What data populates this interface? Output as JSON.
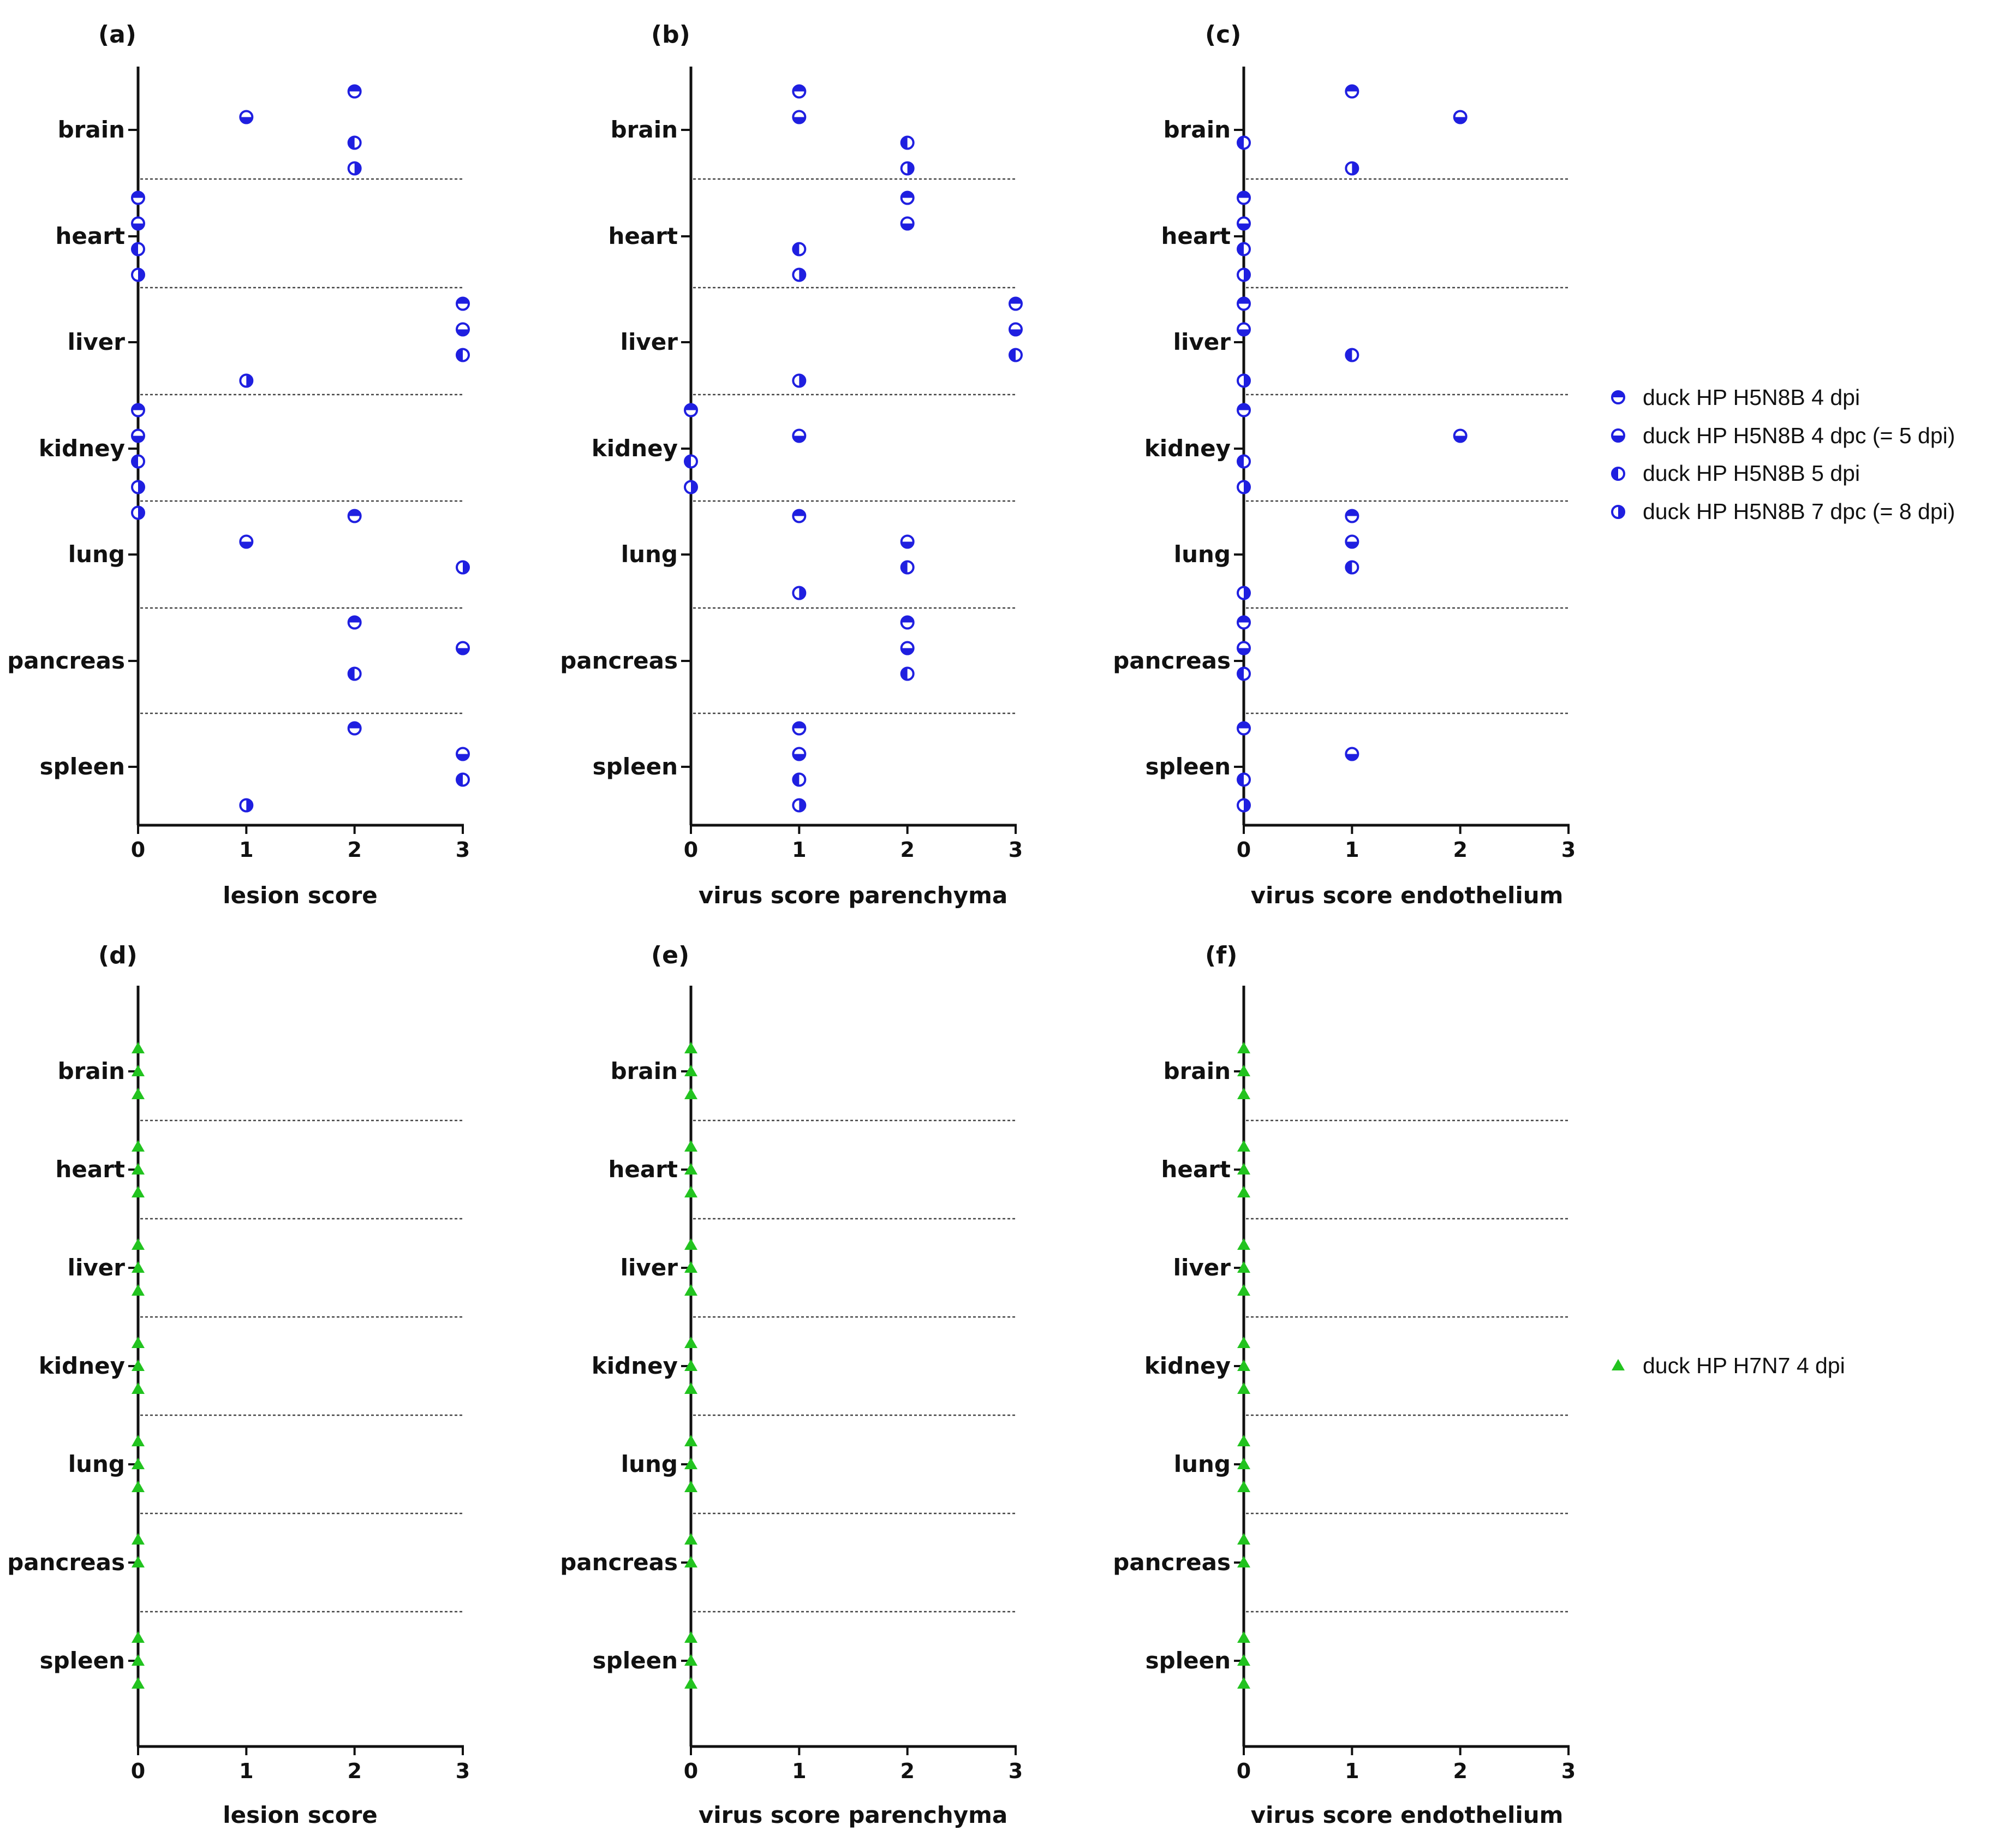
{
  "chart_data": [
    {
      "panel": "(a)",
      "type": "scatter",
      "xlabel": "lesion score",
      "xlim": [
        0,
        3
      ],
      "xticks": [
        "0",
        "1",
        "2",
        "3"
      ],
      "categories": [
        "brain",
        "heart",
        "liver",
        "kidney",
        "lung",
        "pancreas",
        "spleen"
      ],
      "points": [
        {
          "category": "brain",
          "marker": "circle-top",
          "x": 2
        },
        {
          "category": "brain",
          "marker": "circle-bottom",
          "x": 1
        },
        {
          "category": "brain",
          "marker": "circle-left",
          "x": 2
        },
        {
          "category": "brain",
          "marker": "circle-right",
          "x": 2
        },
        {
          "category": "heart",
          "marker": "circle-top",
          "x": 0
        },
        {
          "category": "heart",
          "marker": "circle-bottom",
          "x": 0
        },
        {
          "category": "heart",
          "marker": "circle-left",
          "x": 0
        },
        {
          "category": "heart",
          "marker": "circle-right",
          "x": 0
        },
        {
          "category": "liver",
          "marker": "circle-top",
          "x": 3
        },
        {
          "category": "liver",
          "marker": "circle-bottom",
          "x": 3
        },
        {
          "category": "liver",
          "marker": "circle-left",
          "x": 3
        },
        {
          "category": "liver",
          "marker": "circle-right",
          "x": 1
        },
        {
          "category": "kidney",
          "marker": "circle-top",
          "x": 0
        },
        {
          "category": "kidney",
          "marker": "circle-bottom",
          "x": 0
        },
        {
          "category": "kidney",
          "marker": "circle-left",
          "x": 0
        },
        {
          "category": "kidney",
          "marker": "circle-right",
          "x": 0
        },
        {
          "category": "kidney",
          "marker": "circle-right",
          "x": 0
        },
        {
          "category": "lung",
          "marker": "circle-top",
          "x": 2
        },
        {
          "category": "lung",
          "marker": "circle-bottom",
          "x": 1
        },
        {
          "category": "lung",
          "marker": "circle-right",
          "x": 3
        },
        {
          "category": "pancreas",
          "marker": "circle-top",
          "x": 2
        },
        {
          "category": "pancreas",
          "marker": "circle-bottom",
          "x": 3
        },
        {
          "category": "pancreas",
          "marker": "circle-left",
          "x": 2
        },
        {
          "category": "spleen",
          "marker": "circle-top",
          "x": 2
        },
        {
          "category": "spleen",
          "marker": "circle-bottom",
          "x": 3
        },
        {
          "category": "spleen",
          "marker": "circle-left",
          "x": 3
        },
        {
          "category": "spleen",
          "marker": "circle-right",
          "x": 1
        }
      ]
    },
    {
      "panel": "(b)",
      "type": "scatter",
      "xlabel": "virus score parenchyma",
      "xlim": [
        0,
        3
      ],
      "xticks": [
        "0",
        "1",
        "2",
        "3"
      ],
      "categories": [
        "brain",
        "heart",
        "liver",
        "kidney",
        "lung",
        "pancreas",
        "spleen"
      ],
      "points": [
        {
          "category": "brain",
          "marker": "circle-top",
          "x": 1
        },
        {
          "category": "brain",
          "marker": "circle-bottom",
          "x": 1
        },
        {
          "category": "brain",
          "marker": "circle-left",
          "x": 2
        },
        {
          "category": "brain",
          "marker": "circle-right",
          "x": 2
        },
        {
          "category": "heart",
          "marker": "circle-top",
          "x": 2
        },
        {
          "category": "heart",
          "marker": "circle-bottom",
          "x": 2
        },
        {
          "category": "heart",
          "marker": "circle-left",
          "x": 1
        },
        {
          "category": "heart",
          "marker": "circle-right",
          "x": 1
        },
        {
          "category": "liver",
          "marker": "circle-top",
          "x": 3
        },
        {
          "category": "liver",
          "marker": "circle-bottom",
          "x": 3
        },
        {
          "category": "liver",
          "marker": "circle-left",
          "x": 3
        },
        {
          "category": "liver",
          "marker": "circle-right",
          "x": 1
        },
        {
          "category": "kidney",
          "marker": "circle-top",
          "x": 0
        },
        {
          "category": "kidney",
          "marker": "circle-bottom",
          "x": 1
        },
        {
          "category": "kidney",
          "marker": "circle-left",
          "x": 0
        },
        {
          "category": "kidney",
          "marker": "circle-right",
          "x": 0
        },
        {
          "category": "lung",
          "marker": "circle-top",
          "x": 1
        },
        {
          "category": "lung",
          "marker": "circle-bottom",
          "x": 2
        },
        {
          "category": "lung",
          "marker": "circle-left",
          "x": 2
        },
        {
          "category": "lung",
          "marker": "circle-right",
          "x": 1
        },
        {
          "category": "pancreas",
          "marker": "circle-top",
          "x": 2
        },
        {
          "category": "pancreas",
          "marker": "circle-bottom",
          "x": 2
        },
        {
          "category": "pancreas",
          "marker": "circle-left",
          "x": 2
        },
        {
          "category": "spleen",
          "marker": "circle-top",
          "x": 1
        },
        {
          "category": "spleen",
          "marker": "circle-bottom",
          "x": 1
        },
        {
          "category": "spleen",
          "marker": "circle-left",
          "x": 1
        },
        {
          "category": "spleen",
          "marker": "circle-right",
          "x": 1
        }
      ]
    },
    {
      "panel": "(c)",
      "type": "scatter",
      "xlabel": "virus score endothelium",
      "xlim": [
        0,
        3
      ],
      "xticks": [
        "0",
        "1",
        "2",
        "3"
      ],
      "categories": [
        "brain",
        "heart",
        "liver",
        "kidney",
        "lung",
        "pancreas",
        "spleen"
      ],
      "points": [
        {
          "category": "brain",
          "marker": "circle-top",
          "x": 1
        },
        {
          "category": "brain",
          "marker": "circle-bottom",
          "x": 2
        },
        {
          "category": "brain",
          "marker": "circle-left",
          "x": 0
        },
        {
          "category": "brain",
          "marker": "circle-right",
          "x": 1
        },
        {
          "category": "heart",
          "marker": "circle-top",
          "x": 0
        },
        {
          "category": "heart",
          "marker": "circle-bottom",
          "x": 0
        },
        {
          "category": "heart",
          "marker": "circle-left",
          "x": 0
        },
        {
          "category": "heart",
          "marker": "circle-right",
          "x": 0
        },
        {
          "category": "liver",
          "marker": "circle-top",
          "x": 0
        },
        {
          "category": "liver",
          "marker": "circle-bottom",
          "x": 0
        },
        {
          "category": "liver",
          "marker": "circle-left",
          "x": 1
        },
        {
          "category": "liver",
          "marker": "circle-right",
          "x": 0
        },
        {
          "category": "kidney",
          "marker": "circle-top",
          "x": 0
        },
        {
          "category": "kidney",
          "marker": "circle-bottom",
          "x": 2
        },
        {
          "category": "kidney",
          "marker": "circle-left",
          "x": 0
        },
        {
          "category": "kidney",
          "marker": "circle-right",
          "x": 0
        },
        {
          "category": "lung",
          "marker": "circle-top",
          "x": 1
        },
        {
          "category": "lung",
          "marker": "circle-bottom",
          "x": 1
        },
        {
          "category": "lung",
          "marker": "circle-left",
          "x": 1
        },
        {
          "category": "lung",
          "marker": "circle-right",
          "x": 0
        },
        {
          "category": "pancreas",
          "marker": "circle-top",
          "x": 0
        },
        {
          "category": "pancreas",
          "marker": "circle-bottom",
          "x": 0
        },
        {
          "category": "pancreas",
          "marker": "circle-left",
          "x": 0
        },
        {
          "category": "spleen",
          "marker": "circle-top",
          "x": 0
        },
        {
          "category": "spleen",
          "marker": "circle-bottom",
          "x": 1
        },
        {
          "category": "spleen",
          "marker": "circle-left",
          "x": 0
        },
        {
          "category": "spleen",
          "marker": "circle-right",
          "x": 0
        }
      ]
    },
    {
      "panel": "(d)",
      "type": "scatter",
      "xlabel": "lesion score",
      "xlim": [
        0,
        3
      ],
      "xticks": [
        "0",
        "1",
        "2",
        "3"
      ],
      "categories": [
        "brain",
        "heart",
        "liver",
        "kidney",
        "lung",
        "pancreas",
        "spleen"
      ],
      "points_per_category": [
        3,
        3,
        3,
        3,
        3,
        2,
        3
      ],
      "x_all": 0
    },
    {
      "panel": "(e)",
      "type": "scatter",
      "xlabel": "virus score parenchyma",
      "xlim": [
        0,
        3
      ],
      "xticks": [
        "0",
        "1",
        "2",
        "3"
      ],
      "categories": [
        "brain",
        "heart",
        "liver",
        "kidney",
        "lung",
        "pancreas",
        "spleen"
      ],
      "points_per_category": [
        3,
        3,
        3,
        3,
        3,
        2,
        3
      ],
      "x_all": 0
    },
    {
      "panel": "(f)",
      "type": "scatter",
      "xlabel": "virus score endothelium",
      "xlim": [
        0,
        3
      ],
      "xticks": [
        "0",
        "1",
        "2",
        "3"
      ],
      "categories": [
        "brain",
        "heart",
        "liver",
        "kidney",
        "lung",
        "pancreas",
        "spleen"
      ],
      "points_per_category": [
        3,
        3,
        3,
        3,
        3,
        2,
        3
      ],
      "x_all": 0
    }
  ],
  "legend_top": {
    "placement": "right",
    "entries": [
      {
        "marker": "circle-top",
        "label": "duck HP H5N8B 4 dpi"
      },
      {
        "marker": "circle-bottom",
        "label": "duck HP H5N8B 4 dpc (= 5 dpi)"
      },
      {
        "marker": "circle-left",
        "label": "duck HP H5N8B 5 dpi"
      },
      {
        "marker": "circle-right",
        "label": "duck HP H5N8B 7 dpc (= 8 dpi)"
      }
    ]
  },
  "legend_bottom": {
    "placement": "right",
    "entries": [
      {
        "marker": "triangle",
        "label": "duck HP H7N7 4 dpi"
      }
    ]
  },
  "colors": {
    "h5n8b": "#1f1fe0",
    "h7n7": "#22c31f",
    "axis": "#111111",
    "separator": "#444444"
  }
}
